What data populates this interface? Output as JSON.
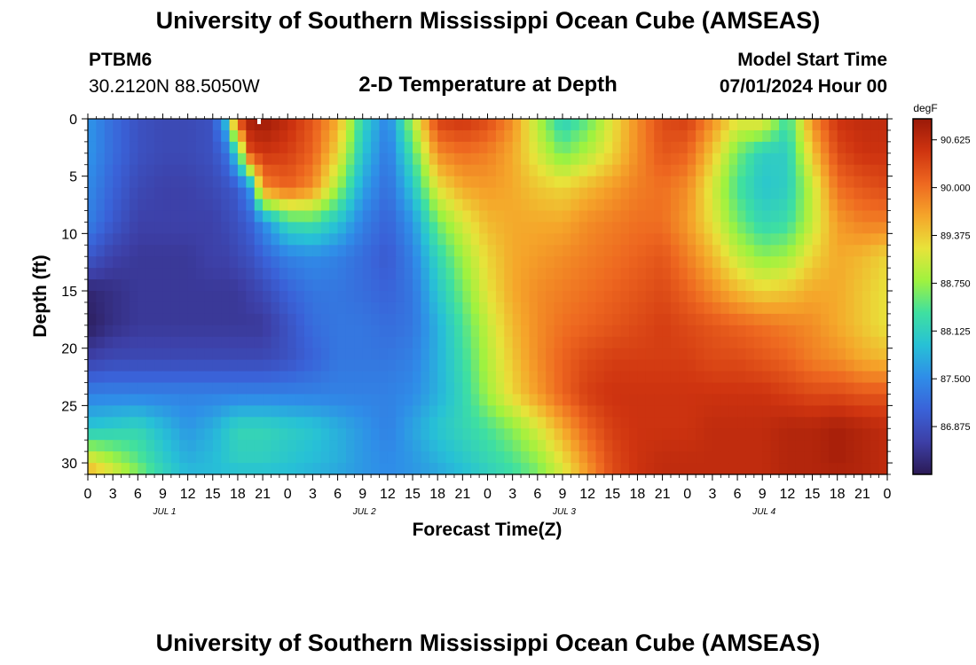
{
  "header": {
    "main_title": "University of Southern Mississippi Ocean Cube (AMSEAS)",
    "station": "PTBM6",
    "coords": "30.2120N  88.5050W",
    "chart_title": "2-D Temperature at Depth",
    "model_start_label": "Model Start Time",
    "model_start_value": "07/01/2024 Hour 00"
  },
  "footer": {
    "repeated_title": "University of Southern Mississippi Ocean Cube (AMSEAS)"
  },
  "chart_data": {
    "type": "heatmap",
    "title": "2-D Temperature at Depth",
    "xlabel": "Forecast Time(Z)",
    "ylabel": "Depth (ft)",
    "x_ticks": [
      "0",
      "3",
      "6",
      "9",
      "12",
      "15",
      "18",
      "21",
      "0",
      "3",
      "6",
      "9",
      "12",
      "15",
      "18",
      "21",
      "0",
      "3",
      "6",
      "9",
      "12",
      "15",
      "18",
      "21",
      "0",
      "3",
      "6",
      "9",
      "12",
      "15",
      "18",
      "21",
      "0"
    ],
    "date_labels": [
      {
        "label": "JUL 1",
        "hour": 9
      },
      {
        "label": "JUL 2",
        "hour": 33
      },
      {
        "label": "JUL 3",
        "hour": 57
      },
      {
        "label": "JUL 4",
        "hour": 81
      }
    ],
    "x_range_hours": [
      0,
      96
    ],
    "y_ticks": [
      0,
      5,
      10,
      15,
      20,
      25,
      30
    ],
    "y_range_ft": [
      0,
      31
    ],
    "colorbar": {
      "unit": "degF",
      "min": 86.25,
      "max": 90.9,
      "tick_labels": [
        "90.625",
        "90.000",
        "89.375",
        "88.750",
        "88.125",
        "87.500",
        "86.875"
      ],
      "colors": [
        "#2b1a55",
        "#3d3fa6",
        "#3a62d8",
        "#2f8de8",
        "#27c1d6",
        "#3fe0a0",
        "#9ff23f",
        "#e8e33a",
        "#f5a52a",
        "#ee6820",
        "#cf3410",
        "#9a1908"
      ]
    },
    "control_points": {
      "hours": [
        0,
        3,
        6,
        9,
        12,
        15,
        16.5,
        18,
        19.5,
        21,
        24,
        27,
        30,
        33,
        36,
        39,
        42,
        45,
        48,
        51,
        54,
        57,
        60,
        63,
        66,
        69,
        72,
        75,
        78,
        81,
        84,
        87,
        90,
        93,
        96
      ],
      "depths_ft": [
        0,
        3,
        6,
        9,
        12,
        15,
        18,
        21,
        24,
        27,
        30,
        31
      ],
      "values_degF": [
        [
          87.6,
          87.2,
          86.9,
          86.8,
          86.8,
          86.9,
          87.9,
          90.4,
          90.8,
          90.9,
          90.6,
          90.2,
          89.6,
          88.2,
          87.4,
          88.9,
          90.4,
          90.5,
          90.3,
          89.8,
          88.9,
          88.1,
          88.5,
          89.2,
          89.8,
          90.3,
          90.4,
          89.8,
          89.2,
          89.3,
          88.3,
          89.8,
          90.5,
          90.6,
          90.6
        ],
        [
          87.6,
          87.2,
          86.9,
          86.8,
          86.8,
          86.9,
          87.2,
          88.2,
          90.3,
          90.5,
          90.4,
          90.1,
          89.3,
          88.0,
          87.3,
          88.4,
          89.8,
          90.0,
          89.9,
          89.6,
          89.1,
          88.6,
          88.9,
          89.3,
          89.8,
          90.2,
          90.1,
          89.4,
          88.6,
          88.1,
          88.1,
          89.4,
          90.3,
          90.5,
          90.5
        ],
        [
          87.5,
          87.1,
          86.8,
          86.7,
          86.7,
          86.8,
          86.9,
          87.0,
          87.6,
          89.8,
          90.1,
          89.8,
          88.8,
          87.7,
          87.2,
          88.0,
          89.2,
          89.6,
          89.7,
          89.6,
          89.4,
          89.3,
          89.5,
          89.7,
          89.9,
          90.0,
          89.8,
          89.1,
          88.4,
          88.0,
          88.1,
          89.0,
          90.0,
          90.2,
          90.3
        ],
        [
          87.4,
          87.0,
          86.7,
          86.7,
          86.7,
          86.7,
          86.8,
          86.9,
          87.1,
          87.5,
          88.3,
          88.4,
          88.0,
          87.4,
          87.1,
          87.6,
          88.6,
          89.1,
          89.5,
          89.6,
          89.6,
          89.6,
          89.8,
          89.9,
          90.0,
          90.0,
          89.7,
          89.2,
          88.6,
          88.2,
          88.3,
          89.0,
          89.7,
          89.9,
          89.9
        ],
        [
          87.0,
          86.7,
          86.6,
          86.6,
          86.6,
          86.7,
          86.7,
          86.8,
          86.9,
          87.1,
          87.4,
          87.5,
          87.4,
          87.2,
          87.0,
          87.4,
          88.2,
          88.8,
          89.3,
          89.6,
          89.7,
          89.8,
          89.9,
          90.0,
          90.1,
          90.2,
          89.9,
          89.5,
          89.0,
          88.7,
          88.8,
          89.3,
          89.6,
          89.5,
          89.3
        ],
        [
          86.4,
          86.5,
          86.6,
          86.6,
          86.6,
          86.6,
          86.6,
          86.6,
          86.7,
          86.8,
          87.1,
          87.3,
          87.3,
          87.2,
          87.1,
          87.3,
          88.0,
          88.6,
          89.2,
          89.6,
          89.8,
          89.9,
          90.0,
          90.1,
          90.2,
          90.3,
          90.1,
          89.8,
          89.5,
          89.3,
          89.4,
          89.6,
          89.6,
          89.4,
          89.2
        ],
        [
          86.3,
          86.5,
          86.6,
          86.6,
          86.6,
          86.6,
          86.6,
          86.6,
          86.6,
          86.6,
          86.9,
          87.2,
          87.3,
          87.3,
          87.2,
          87.3,
          87.8,
          88.4,
          89.0,
          89.5,
          89.8,
          90.0,
          90.1,
          90.2,
          90.3,
          90.4,
          90.3,
          90.2,
          90.1,
          90.0,
          89.9,
          89.8,
          89.6,
          89.4,
          89.2
        ],
        [
          86.7,
          86.8,
          86.8,
          86.8,
          86.8,
          86.8,
          86.8,
          86.8,
          86.8,
          86.8,
          86.9,
          87.1,
          87.3,
          87.3,
          87.3,
          87.4,
          87.8,
          88.3,
          88.9,
          89.4,
          89.8,
          90.1,
          90.3,
          90.4,
          90.4,
          90.4,
          90.4,
          90.3,
          90.3,
          90.2,
          90.1,
          89.9,
          89.8,
          89.6,
          89.5
        ],
        [
          87.4,
          87.4,
          87.4,
          87.4,
          87.4,
          87.4,
          87.4,
          87.4,
          87.4,
          87.4,
          87.4,
          87.4,
          87.4,
          87.4,
          87.4,
          87.5,
          87.8,
          88.2,
          88.8,
          89.3,
          89.7,
          90.1,
          90.4,
          90.5,
          90.5,
          90.5,
          90.5,
          90.5,
          90.5,
          90.5,
          90.4,
          90.3,
          90.3,
          90.2,
          90.2
        ],
        [
          88.0,
          88.1,
          88.2,
          87.9,
          87.6,
          87.8,
          88.0,
          88.2,
          88.2,
          88.2,
          88.1,
          88.0,
          87.8,
          87.6,
          87.4,
          87.7,
          88.0,
          88.2,
          88.4,
          88.7,
          89.1,
          89.6,
          90.1,
          90.4,
          90.5,
          90.5,
          90.5,
          90.6,
          90.6,
          90.6,
          90.7,
          90.7,
          90.8,
          90.7,
          90.6
        ],
        [
          89.3,
          88.9,
          88.5,
          88.1,
          87.8,
          87.9,
          88.0,
          88.1,
          88.1,
          88.1,
          88.0,
          87.9,
          87.8,
          87.6,
          87.5,
          87.6,
          87.8,
          88.0,
          88.2,
          88.4,
          88.7,
          89.2,
          89.8,
          90.3,
          90.5,
          90.6,
          90.6,
          90.6,
          90.6,
          90.6,
          90.7,
          90.7,
          90.8,
          90.7,
          90.6
        ],
        [
          89.6,
          89.2,
          88.7,
          88.2,
          87.9,
          87.9,
          87.9,
          87.9,
          87.9,
          87.9,
          87.9,
          87.8,
          87.7,
          87.6,
          87.5,
          87.6,
          87.7,
          87.9,
          88.1,
          88.3,
          88.6,
          89.1,
          89.7,
          90.3,
          90.5,
          90.6,
          90.6,
          90.6,
          90.6,
          90.6,
          90.7,
          90.7,
          90.7,
          90.7,
          90.6
        ]
      ]
    }
  }
}
